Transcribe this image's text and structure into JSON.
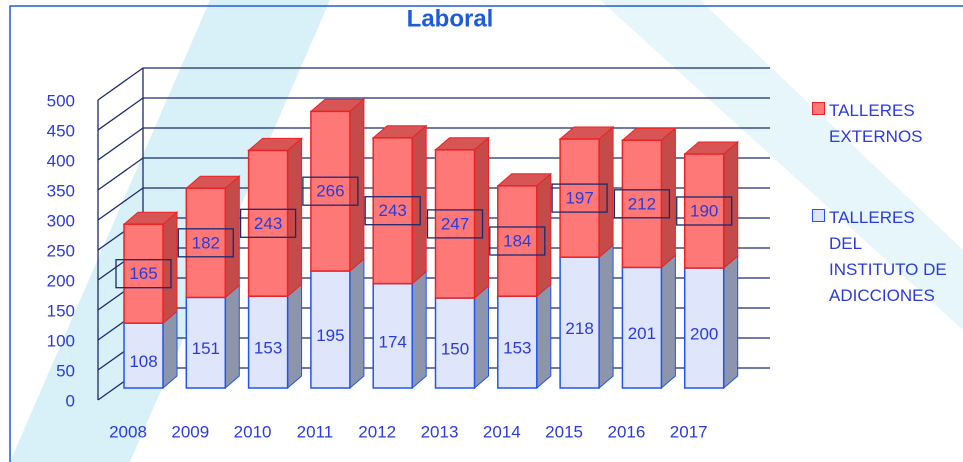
{
  "chart_data": {
    "type": "stacked_bar_3d",
    "title": "Laboral",
    "categories": [
      "2008",
      "2009",
      "2010",
      "2011",
      "2012",
      "2013",
      "2014",
      "2015",
      "2016",
      "2017"
    ],
    "series": [
      {
        "name": "TALLERES DEL INSTITUTO DE ADICCIONES",
        "color": "#dfe5fb",
        "values": [
          108,
          151,
          153,
          195,
          174,
          150,
          153,
          218,
          201,
          200
        ]
      },
      {
        "name": "TALLERES EXTERNOS",
        "color": "#ff7878",
        "values": [
          165,
          182,
          243,
          266,
          243,
          247,
          184,
          197,
          212,
          190
        ]
      }
    ],
    "ylim": [
      0,
      500
    ],
    "yticks": [
      0,
      50,
      100,
      150,
      200,
      250,
      300,
      350,
      400,
      450,
      500
    ],
    "grid": true,
    "legend": "right"
  }
}
